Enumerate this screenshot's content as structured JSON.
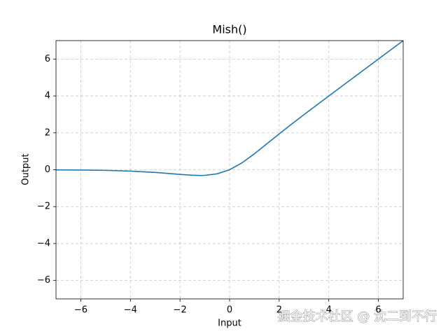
{
  "chart_data": {
    "type": "line",
    "title": "Mish()",
    "x_label": "Input",
    "y_label": "Output",
    "x": [
      -7,
      -6,
      -5,
      -4,
      -3,
      -2.5,
      -2,
      -1.5,
      -1.2,
      -1,
      -0.5,
      0,
      0.5,
      1,
      1.5,
      2,
      2.5,
      3,
      4,
      5,
      6,
      7
    ],
    "series": [
      {
        "name": "Mish",
        "color": "#1f77b4",
        "values": [
          -0.0064,
          -0.0149,
          -0.0336,
          -0.0726,
          -0.1456,
          -0.1967,
          -0.2525,
          -0.2981,
          -0.3088,
          -0.3034,
          -0.2207,
          0,
          0.3753,
          0.8651,
          1.4033,
          1.944,
          2.4715,
          2.9865,
          3.9974,
          4.9996,
          6.0,
          7.0
        ]
      }
    ],
    "xlim": [
      -7,
      7
    ],
    "ylim": [
      -7,
      7
    ],
    "xticks": [
      {
        "value": -6,
        "label": "−6"
      },
      {
        "value": -4,
        "label": "−4"
      },
      {
        "value": -2,
        "label": "−2"
      },
      0,
      2,
      4,
      6
    ],
    "yticks": [
      {
        "value": -6,
        "label": "−6"
      },
      {
        "value": -4,
        "label": "−4"
      },
      {
        "value": -2,
        "label": "−2"
      },
      0,
      2,
      4,
      6
    ],
    "grid": true,
    "watermark": "掘金技术社区 @ 沈二到不行"
  }
}
